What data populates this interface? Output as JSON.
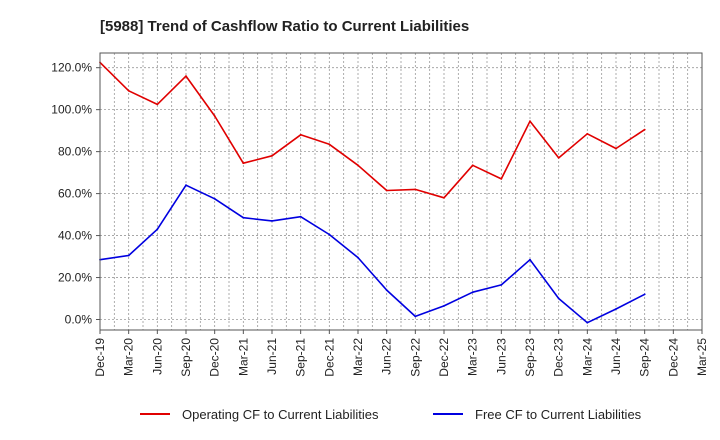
{
  "chart_data": {
    "type": "line",
    "title": "[5988]  Trend of Cashflow Ratio to Current Liabilities",
    "xlabel": "",
    "ylabel": "",
    "x_tick_labels": [
      "Dec-19",
      "Mar-20",
      "Jun-20",
      "Sep-20",
      "Dec-20",
      "Mar-21",
      "Jun-21",
      "Sep-21",
      "Dec-21",
      "Mar-22",
      "Jun-22",
      "Sep-22",
      "Dec-22",
      "Mar-23",
      "Jun-23",
      "Sep-23",
      "Dec-23",
      "Mar-24",
      "Jun-24",
      "Sep-24",
      "Dec-24",
      "Mar-25"
    ],
    "y_tick_labels": [
      "0.0%",
      "20.0%",
      "40.0%",
      "60.0%",
      "80.0%",
      "100.0%",
      "120.0%"
    ],
    "y_ticks": [
      0,
      20,
      40,
      60,
      80,
      100,
      120
    ],
    "ylim": [
      -5,
      127
    ],
    "grid": true,
    "legend_position": "bottom",
    "series": [
      {
        "name": "Operating CF to Current Liabilities",
        "color": "#e00000",
        "values": [
          122.5,
          109,
          102.5,
          116,
          97,
          74.5,
          78,
          88,
          83.5,
          73.5,
          61.5,
          62,
          58,
          73.5,
          67,
          94.5,
          77,
          88.5,
          81.5,
          90.5,
          null,
          null
        ]
      },
      {
        "name": "Free CF to Current Liabilities",
        "color": "#0000e0",
        "values": [
          28.5,
          30.5,
          43,
          64,
          57.5,
          48.5,
          47,
          49,
          40.5,
          29.5,
          14,
          1.5,
          6.5,
          13,
          16.5,
          28.5,
          10,
          -1.5,
          5,
          12,
          null,
          null
        ]
      }
    ]
  }
}
